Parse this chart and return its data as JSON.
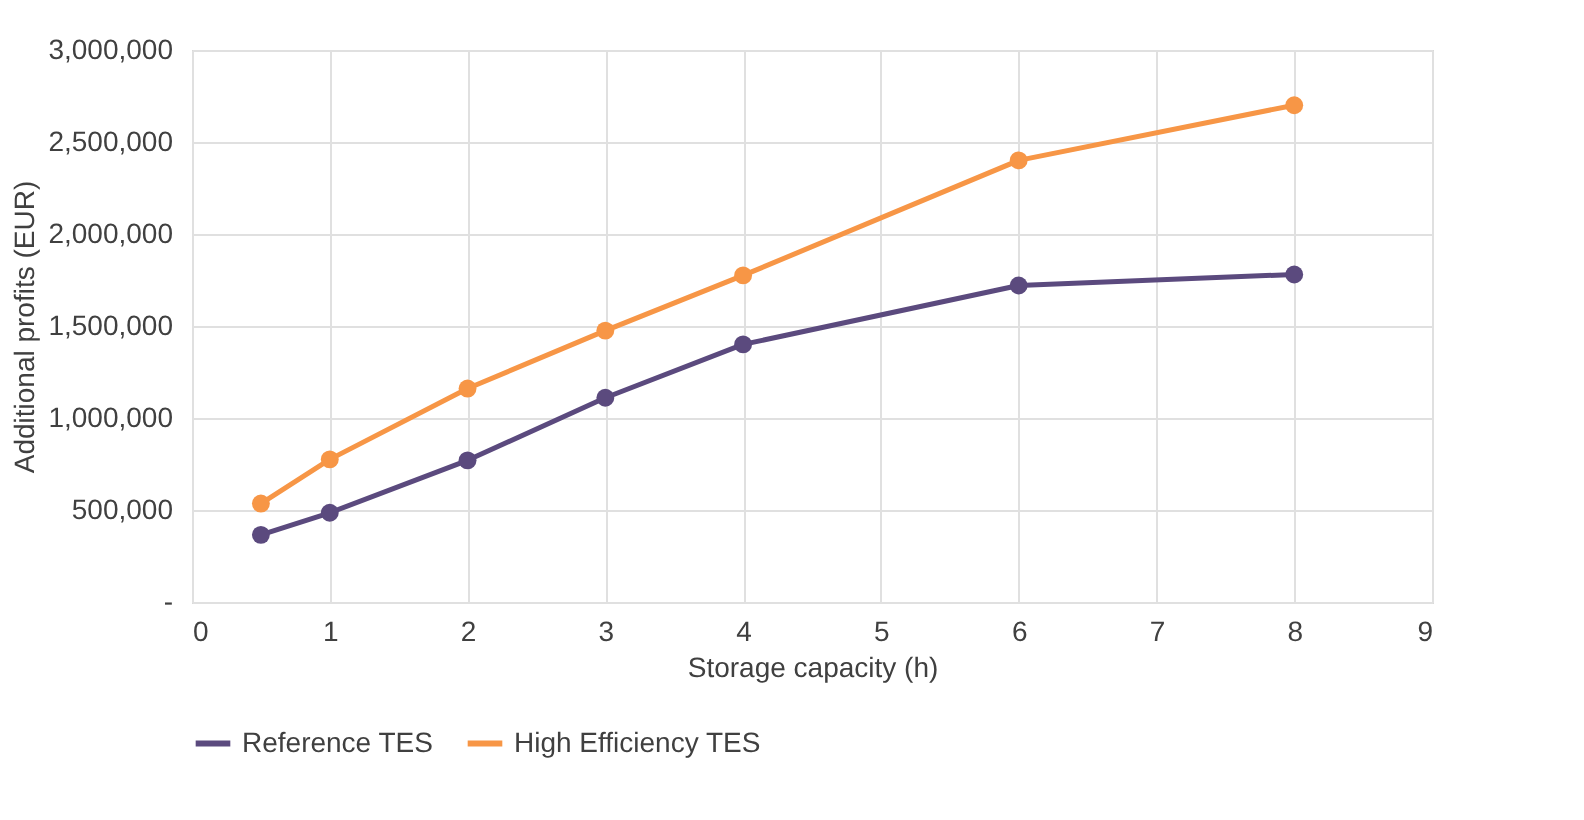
{
  "chart_data": {
    "type": "line",
    "xlabel": "Storage capacity (h)",
    "ylabel": "Additional profits (EUR)",
    "x": [
      0.5,
      1,
      2,
      3,
      4,
      6,
      8
    ],
    "series": [
      {
        "name": "Reference TES",
        "color": "#5b4a7e",
        "values": [
          365000,
          485000,
          770000,
          1110000,
          1400000,
          1720000,
          1780000
        ]
      },
      {
        "name": "High Efficiency TES",
        "color": "#f79646",
        "values": [
          535000,
          775000,
          1160000,
          1475000,
          1775000,
          2400000,
          2700000
        ]
      }
    ],
    "xlim": [
      0,
      9
    ],
    "xticks": [
      0,
      1,
      2,
      3,
      4,
      5,
      6,
      7,
      8,
      9
    ],
    "ylim": [
      0,
      3000000
    ],
    "yticks": [
      {
        "value": 0,
        "label": "-"
      },
      {
        "value": 500000,
        "label": "500,000"
      },
      {
        "value": 1000000,
        "label": "1,000,000"
      },
      {
        "value": 1500000,
        "label": "1,500,000"
      },
      {
        "value": 2000000,
        "label": "2,000,000"
      },
      {
        "value": 2500000,
        "label": "2,500,000"
      },
      {
        "value": 3000000,
        "label": "3,000,000"
      }
    ],
    "grid": true,
    "legend": "bottom",
    "marker": "circle",
    "line_style": "solid"
  }
}
